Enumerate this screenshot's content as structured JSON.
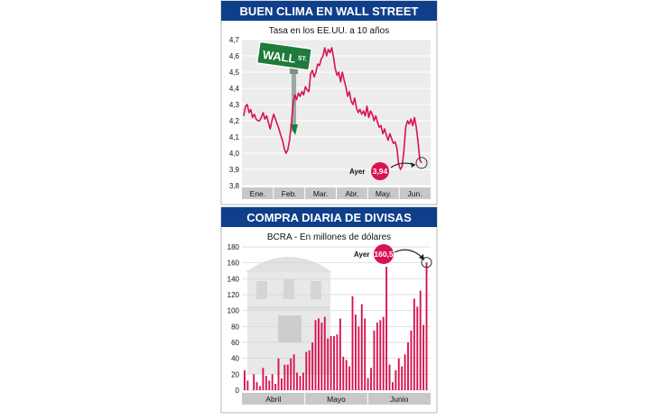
{
  "colors": {
    "header_bg": "#0f3f8a",
    "header_text": "#ffffff",
    "plot_bg": "#ececec",
    "line": "#d8134f",
    "bar": "#d8134f",
    "badge": "#d8134f",
    "sign_green": "#1f7a3c",
    "axis_band": "#c8c8c8"
  },
  "chart_data": [
    {
      "type": "line",
      "header": "BUEN CLIMA EN WALL STREET",
      "title": "Tasa en los EE.UU. a 10 años",
      "ylim": [
        3.8,
        4.7
      ],
      "y_ticks": [
        "3,8",
        "3,9",
        "4,0",
        "4,1",
        "4,2",
        "4,3",
        "4,4",
        "4,5",
        "4,6",
        "4,7"
      ],
      "months": [
        "Ene.",
        "Feb.",
        "Mar.",
        "Abr.",
        "May.",
        "Jun."
      ],
      "series": [
        {
          "values": [
            4.23,
            4.29,
            4.3,
            4.25,
            4.27,
            4.22,
            4.24,
            4.21,
            4.2,
            4.2,
            4.22,
            4.25,
            4.21,
            4.23,
            4.19,
            4.15,
            4.2,
            4.24,
            4.21,
            4.18,
            4.15,
            4.11,
            4.08,
            4.03,
            4.0,
            4.02,
            4.08,
            4.18,
            4.3,
            4.36,
            4.33,
            4.37,
            4.35,
            4.38,
            4.36,
            4.41,
            4.39,
            4.38,
            4.49,
            4.51,
            4.47,
            4.5,
            4.55,
            4.54,
            4.58,
            4.6,
            4.65,
            4.6,
            4.64,
            4.62,
            4.65,
            4.59,
            4.52,
            4.48,
            4.5,
            4.44,
            4.5,
            4.45,
            4.41,
            4.35,
            4.38,
            4.32,
            4.3,
            4.34,
            4.28,
            4.25,
            4.27,
            4.24,
            4.26,
            4.23,
            4.29,
            4.22,
            4.26,
            4.24,
            4.2,
            4.23,
            4.19,
            4.16,
            4.17,
            4.12,
            4.15,
            4.11,
            4.08,
            4.12,
            4.09,
            4.06,
            4.07,
            4.03,
            3.93,
            3.9,
            3.92,
            4.02,
            4.16,
            4.2,
            4.18,
            4.21,
            4.17,
            4.22,
            4.16,
            4.07,
            3.96,
            3.94
          ]
        }
      ],
      "annotation": {
        "label": "Ayer",
        "value": "3,94"
      },
      "sign": {
        "line1": "WALL",
        "line2": "ST."
      }
    },
    {
      "type": "bar",
      "header": "COMPRA DIARIA DE DIVISAS",
      "title": "BCRA - En millones de dólares",
      "ylim": [
        0,
        180
      ],
      "y_ticks": [
        "0",
        "20",
        "40",
        "60",
        "80",
        "100",
        "120",
        "140",
        "160",
        "180"
      ],
      "months": [
        "Abril",
        "Mayo",
        "Junio"
      ],
      "values": [
        25,
        12,
        0,
        20,
        10,
        5,
        28,
        18,
        12,
        20,
        8,
        40,
        15,
        32,
        32,
        40,
        45,
        22,
        18,
        22,
        48,
        50,
        60,
        88,
        90,
        85,
        92,
        65,
        68,
        68,
        70,
        90,
        42,
        38,
        30,
        118,
        95,
        80,
        108,
        90,
        15,
        28,
        75,
        85,
        88,
        92,
        155,
        32,
        10,
        25,
        40,
        30,
        45,
        60,
        75,
        115,
        105,
        125,
        82,
        160.5
      ],
      "annotation": {
        "label": "Ayer",
        "value": "160,5"
      }
    }
  ]
}
